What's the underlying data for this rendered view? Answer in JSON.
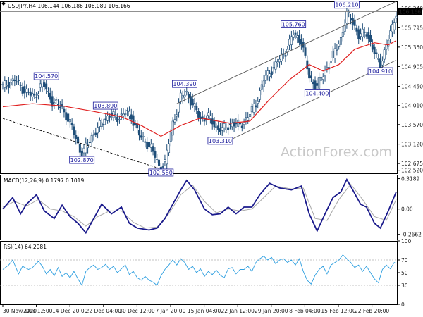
{
  "chart_data": [
    {
      "type": "candlestick",
      "title": "USDJPY,H4",
      "ohlc_header": "106.144 106.186 106.089 106.166",
      "current_price": "106.166",
      "y_ticks": [
        "106.240",
        "105.795",
        "105.350",
        "104.905",
        "104.450",
        "104.010",
        "103.570",
        "103.120",
        "102.675",
        "102.520"
      ],
      "ylim": [
        102.45,
        106.4
      ],
      "x_ticks": [
        "30 Nov 2020",
        "7 Dec 12:00",
        "14 Dec 20:00",
        "22 Dec 04:00",
        "30 Dec 12:00",
        "7 Jan 20:00",
        "15 Jan 04:00",
        "22 Jan 12:00",
        "29 Jan 20:00",
        "8 Feb 04:00",
        "15 Feb 12:00",
        "22 Feb 20:00"
      ],
      "close_path": [
        [
          0,
          104.45
        ],
        [
          6,
          104.6
        ],
        [
          11,
          104.35
        ],
        [
          16,
          104.2
        ],
        [
          20,
          104.55
        ],
        [
          25,
          104.1
        ],
        [
          30,
          103.95
        ],
        [
          35,
          103.5
        ],
        [
          40,
          102.87
        ],
        [
          45,
          103.3
        ],
        [
          50,
          103.6
        ],
        [
          54,
          103.8
        ],
        [
          58,
          103.72
        ],
        [
          62,
          103.85
        ],
        [
          65,
          103.75
        ],
        [
          70,
          103.25
        ],
        [
          75,
          103.05
        ],
        [
          79,
          102.6
        ],
        [
          82,
          102.7
        ],
        [
          86,
          103.6
        ],
        [
          90,
          104.2
        ],
        [
          93,
          104.3
        ],
        [
          97,
          103.95
        ],
        [
          100,
          103.7
        ],
        [
          104,
          103.75
        ],
        [
          108,
          103.5
        ],
        [
          111,
          103.45
        ],
        [
          116,
          103.6
        ],
        [
          120,
          103.55
        ],
        [
          124,
          103.75
        ],
        [
          128,
          104.05
        ],
        [
          132,
          104.6
        ],
        [
          138,
          104.95
        ],
        [
          143,
          105.25
        ],
        [
          147,
          105.65
        ],
        [
          151,
          105.5
        ],
        [
          155,
          104.65
        ],
        [
          159,
          104.45
        ],
        [
          163,
          104.8
        ],
        [
          167,
          105.15
        ],
        [
          171,
          105.55
        ],
        [
          174,
          106.1
        ],
        [
          177,
          105.95
        ],
        [
          180,
          105.6
        ],
        [
          184,
          105.7
        ],
        [
          188,
          105.2
        ],
        [
          191,
          104.95
        ],
        [
          194,
          105.4
        ],
        [
          197,
          105.8
        ],
        [
          199,
          106.166
        ]
      ],
      "ma": [
        [
          0,
          103.98
        ],
        [
          15,
          104.05
        ],
        [
          30,
          104.0
        ],
        [
          45,
          103.88
        ],
        [
          60,
          103.75
        ],
        [
          70,
          103.55
        ],
        [
          80,
          103.3
        ],
        [
          90,
          103.55
        ],
        [
          100,
          103.72
        ],
        [
          115,
          103.6
        ],
        [
          125,
          103.65
        ],
        [
          135,
          104.15
        ],
        [
          145,
          104.6
        ],
        [
          155,
          104.95
        ],
        [
          162,
          104.8
        ],
        [
          170,
          104.95
        ],
        [
          178,
          105.3
        ],
        [
          188,
          105.45
        ],
        [
          195,
          105.4
        ],
        [
          199,
          105.5
        ]
      ],
      "annotations": [
        {
          "label": "104.570",
          "x": 22,
          "y": 104.57
        },
        {
          "label": "102.870",
          "x": 40,
          "y": 102.87
        },
        {
          "label": "103.890",
          "x": 52,
          "y": 103.89
        },
        {
          "label": "102.580",
          "x": 80,
          "y": 102.58
        },
        {
          "label": "104.390",
          "x": 92,
          "y": 104.39
        },
        {
          "label": "103.310",
          "x": 110,
          "y": 103.31
        },
        {
          "label": "105.760",
          "x": 147,
          "y": 105.76
        },
        {
          "label": "104.400",
          "x": 159,
          "y": 104.4
        },
        {
          "label": "106.210",
          "x": 174,
          "y": 106.21
        },
        {
          "label": "104.910",
          "x": 191,
          "y": 104.91
        }
      ],
      "trendlines": [
        {
          "style": "dashed",
          "points": [
            [
              0,
              103.71
            ],
            [
              80,
              102.55
            ]
          ]
        },
        {
          "style": "solid",
          "points": [
            [
              88,
              104.05
            ],
            [
              199,
              106.4
            ]
          ]
        },
        {
          "style": "solid",
          "points": [
            [
              112,
              103.15
            ],
            [
              199,
              105.05
            ]
          ]
        }
      ],
      "horizontal_line": 106.166,
      "watermark": "ActionForex.com"
    },
    {
      "type": "line",
      "title": "MACD(12,26,9) 0.1797 0.1019",
      "y_ticks": [
        "0.3189",
        "0.00",
        "-0.2662"
      ],
      "ylim": [
        -0.32,
        0.36
      ],
      "series": [
        {
          "name": "MACD",
          "values": [
            [
              0,
              0.0
            ],
            [
              5,
              0.12
            ],
            [
              9,
              -0.05
            ],
            [
              12,
              0.05
            ],
            [
              17,
              0.15
            ],
            [
              21,
              -0.02
            ],
            [
              26,
              -0.1
            ],
            [
              30,
              0.04
            ],
            [
              34,
              -0.08
            ],
            [
              38,
              -0.15
            ],
            [
              42,
              -0.25
            ],
            [
              46,
              -0.1
            ],
            [
              50,
              0.05
            ],
            [
              55,
              -0.05
            ],
            [
              60,
              0.02
            ],
            [
              64,
              -0.15
            ],
            [
              68,
              -0.2
            ],
            [
              74,
              -0.22
            ],
            [
              78,
              -0.2
            ],
            [
              82,
              -0.1
            ],
            [
              86,
              0.05
            ],
            [
              90,
              0.2
            ],
            [
              93,
              0.3
            ],
            [
              97,
              0.2
            ],
            [
              102,
              0.0
            ],
            [
              106,
              -0.06
            ],
            [
              110,
              -0.05
            ],
            [
              114,
              0.02
            ],
            [
              118,
              -0.05
            ],
            [
              122,
              0.02
            ],
            [
              126,
              0.02
            ],
            [
              130,
              0.15
            ],
            [
              135,
              0.27
            ],
            [
              140,
              0.22
            ],
            [
              146,
              0.2
            ],
            [
              151,
              0.24
            ],
            [
              155,
              -0.05
            ],
            [
              159,
              -0.23
            ],
            [
              163,
              -0.05
            ],
            [
              167,
              0.12
            ],
            [
              171,
              0.18
            ],
            [
              174,
              0.31
            ],
            [
              177,
              0.2
            ],
            [
              181,
              0.05
            ],
            [
              184,
              0.02
            ],
            [
              188,
              -0.15
            ],
            [
              191,
              -0.2
            ],
            [
              195,
              -0.02
            ],
            [
              199,
              0.18
            ]
          ]
        },
        {
          "name": "Signal",
          "values": [
            [
              0,
              0.02
            ],
            [
              6,
              0.08
            ],
            [
              12,
              0.03
            ],
            [
              18,
              0.1
            ],
            [
              24,
              0.0
            ],
            [
              30,
              -0.02
            ],
            [
              36,
              -0.08
            ],
            [
              42,
              -0.18
            ],
            [
              48,
              -0.08
            ],
            [
              54,
              -0.02
            ],
            [
              60,
              -0.02
            ],
            [
              66,
              -0.14
            ],
            [
              72,
              -0.2
            ],
            [
              78,
              -0.19
            ],
            [
              84,
              -0.05
            ],
            [
              90,
              0.15
            ],
            [
              96,
              0.25
            ],
            [
              102,
              0.08
            ],
            [
              108,
              -0.04
            ],
            [
              114,
              0.0
            ],
            [
              120,
              -0.02
            ],
            [
              126,
              0.0
            ],
            [
              132,
              0.12
            ],
            [
              138,
              0.24
            ],
            [
              146,
              0.21
            ],
            [
              152,
              0.22
            ],
            [
              158,
              -0.1
            ],
            [
              164,
              -0.12
            ],
            [
              170,
              0.1
            ],
            [
              176,
              0.26
            ],
            [
              182,
              0.1
            ],
            [
              188,
              -0.08
            ],
            [
              194,
              -0.12
            ],
            [
              199,
              0.1
            ]
          ]
        }
      ]
    },
    {
      "type": "line",
      "title": "RSI(14) 64.2081",
      "y_ticks": [
        "100",
        "70",
        "50",
        "30",
        "0"
      ],
      "ylim": [
        0,
        100
      ],
      "series": [
        {
          "name": "RSI",
          "values": [
            [
              0,
              55
            ],
            [
              3,
              62
            ],
            [
              5,
              70
            ],
            [
              8,
              48
            ],
            [
              10,
              60
            ],
            [
              13,
              55
            ],
            [
              15,
              58
            ],
            [
              18,
              68
            ],
            [
              20,
              60
            ],
            [
              22,
              48
            ],
            [
              24,
              55
            ],
            [
              26,
              45
            ],
            [
              28,
              58
            ],
            [
              30,
              44
            ],
            [
              32,
              50
            ],
            [
              34,
              42
            ],
            [
              36,
              52
            ],
            [
              38,
              40
            ],
            [
              40,
              30
            ],
            [
              42,
              52
            ],
            [
              44,
              58
            ],
            [
              46,
              62
            ],
            [
              48,
              55
            ],
            [
              50,
              58
            ],
            [
              52,
              63
            ],
            [
              54,
              55
            ],
            [
              56,
              60
            ],
            [
              58,
              50
            ],
            [
              60,
              56
            ],
            [
              62,
              62
            ],
            [
              64,
              47
            ],
            [
              66,
              52
            ],
            [
              68,
              42
            ],
            [
              70,
              38
            ],
            [
              72,
              44
            ],
            [
              74,
              38
            ],
            [
              76,
              35
            ],
            [
              78,
              30
            ],
            [
              80,
              45
            ],
            [
              82,
              55
            ],
            [
              84,
              62
            ],
            [
              86,
              70
            ],
            [
              88,
              62
            ],
            [
              90,
              72
            ],
            [
              92,
              66
            ],
            [
              94,
              55
            ],
            [
              96,
              60
            ],
            [
              98,
              50
            ],
            [
              100,
              56
            ],
            [
              102,
              44
            ],
            [
              104,
              52
            ],
            [
              106,
              47
            ],
            [
              108,
              54
            ],
            [
              110,
              46
            ],
            [
              112,
              42
            ],
            [
              114,
              56
            ],
            [
              116,
              58
            ],
            [
              118,
              48
            ],
            [
              120,
              55
            ],
            [
              122,
              55
            ],
            [
              124,
              60
            ],
            [
              126,
              52
            ],
            [
              128,
              66
            ],
            [
              130,
              72
            ],
            [
              132,
              76
            ],
            [
              134,
              70
            ],
            [
              136,
              74
            ],
            [
              138,
              64
            ],
            [
              140,
              70
            ],
            [
              142,
              72
            ],
            [
              144,
              66
            ],
            [
              146,
              70
            ],
            [
              148,
              62
            ],
            [
              150,
              72
            ],
            [
              152,
              52
            ],
            [
              154,
              38
            ],
            [
              156,
              32
            ],
            [
              158,
              46
            ],
            [
              160,
              55
            ],
            [
              162,
              60
            ],
            [
              164,
              48
            ],
            [
              166,
              62
            ],
            [
              168,
              66
            ],
            [
              170,
              70
            ],
            [
              172,
              78
            ],
            [
              174,
              72
            ],
            [
              176,
              66
            ],
            [
              178,
              58
            ],
            [
              180,
              62
            ],
            [
              182,
              52
            ],
            [
              184,
              60
            ],
            [
              186,
              50
            ],
            [
              188,
              40
            ],
            [
              190,
              34
            ],
            [
              192,
              55
            ],
            [
              194,
              62
            ],
            [
              196,
              56
            ],
            [
              198,
              66
            ],
            [
              199,
              64.2
            ]
          ]
        }
      ]
    }
  ]
}
